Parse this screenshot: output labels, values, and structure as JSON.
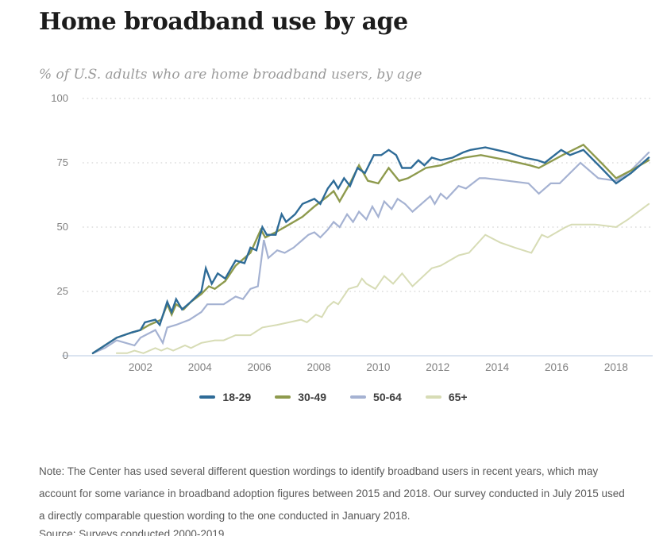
{
  "header": {
    "title": "Home broadband use by age",
    "subtitle": "% of U.S. adults who are home broadband users, by age"
  },
  "chart_data": {
    "type": "line",
    "title": "Home broadband use by age",
    "subtitle": "% of U.S. adults who are home broadband users, by age",
    "xlabel": "",
    "ylabel": "% of U.S. adults",
    "x_axis": {
      "ticks": [
        2002,
        2004,
        2006,
        2008,
        2010,
        2012,
        2014,
        2016,
        2018
      ],
      "range": [
        2000.2,
        2019.3
      ]
    },
    "y_axis": {
      "ticks": [
        0,
        25,
        50,
        75,
        100
      ],
      "range": [
        0,
        100
      ]
    },
    "grid": "horizontal-dotted",
    "grid_color": "#d4d4d4",
    "axis_line_color": "#c5d3e6",
    "legend_position": "bottom-center",
    "series": [
      {
        "name": "18-29",
        "color": "#2e6b97",
        "width": 2.4,
        "points": [
          [
            2000.4,
            1
          ],
          [
            2000.8,
            4
          ],
          [
            2001.2,
            7
          ],
          [
            2001.7,
            9
          ],
          [
            2002.0,
            10
          ],
          [
            2002.15,
            13
          ],
          [
            2002.5,
            14
          ],
          [
            2002.65,
            12
          ],
          [
            2002.9,
            21
          ],
          [
            2003.05,
            17
          ],
          [
            2003.2,
            22
          ],
          [
            2003.4,
            18
          ],
          [
            2003.7,
            21
          ],
          [
            2004.05,
            25
          ],
          [
            2004.2,
            34
          ],
          [
            2004.4,
            28
          ],
          [
            2004.6,
            32
          ],
          [
            2004.85,
            30
          ],
          [
            2005.2,
            37
          ],
          [
            2005.5,
            36
          ],
          [
            2005.7,
            42
          ],
          [
            2005.9,
            41
          ],
          [
            2006.1,
            50
          ],
          [
            2006.25,
            47
          ],
          [
            2006.55,
            47
          ],
          [
            2006.75,
            55
          ],
          [
            2006.9,
            52
          ],
          [
            2007.2,
            55
          ],
          [
            2007.45,
            59
          ],
          [
            2007.85,
            61
          ],
          [
            2008.05,
            59
          ],
          [
            2008.3,
            65
          ],
          [
            2008.5,
            68
          ],
          [
            2008.65,
            65
          ],
          [
            2008.85,
            69
          ],
          [
            2009.05,
            66
          ],
          [
            2009.3,
            73
          ],
          [
            2009.55,
            71
          ],
          [
            2009.85,
            78
          ],
          [
            2010.1,
            78
          ],
          [
            2010.35,
            80
          ],
          [
            2010.6,
            78
          ],
          [
            2010.8,
            73
          ],
          [
            2011.1,
            73
          ],
          [
            2011.35,
            76
          ],
          [
            2011.55,
            74
          ],
          [
            2011.8,
            77
          ],
          [
            2012.1,
            76
          ],
          [
            2012.5,
            77
          ],
          [
            2012.85,
            79
          ],
          [
            2013.1,
            80
          ],
          [
            2013.6,
            81
          ],
          [
            2014.35,
            79
          ],
          [
            2014.9,
            77
          ],
          [
            2015.35,
            76
          ],
          [
            2015.6,
            75
          ],
          [
            2016.15,
            80
          ],
          [
            2016.45,
            78
          ],
          [
            2016.9,
            80
          ],
          [
            2017.5,
            73
          ],
          [
            2018.0,
            67
          ],
          [
            2018.5,
            71
          ],
          [
            2019.1,
            77
          ]
        ]
      },
      {
        "name": "30-49",
        "color": "#8e9a4d",
        "width": 2.4,
        "points": [
          [
            2000.4,
            1
          ],
          [
            2000.8,
            4
          ],
          [
            2001.2,
            7
          ],
          [
            2001.7,
            9
          ],
          [
            2002.0,
            10
          ],
          [
            2002.3,
            12
          ],
          [
            2002.7,
            14
          ],
          [
            2002.9,
            20
          ],
          [
            2003.05,
            16
          ],
          [
            2003.2,
            20
          ],
          [
            2003.45,
            18
          ],
          [
            2003.7,
            21
          ],
          [
            2004.05,
            24
          ],
          [
            2004.3,
            27
          ],
          [
            2004.5,
            26
          ],
          [
            2004.85,
            29
          ],
          [
            2005.2,
            35
          ],
          [
            2005.7,
            40
          ],
          [
            2006.05,
            49
          ],
          [
            2006.2,
            46
          ],
          [
            2006.55,
            48
          ],
          [
            2007.0,
            51
          ],
          [
            2007.45,
            54
          ],
          [
            2007.85,
            58
          ],
          [
            2008.3,
            62
          ],
          [
            2008.5,
            64
          ],
          [
            2008.7,
            60
          ],
          [
            2009.05,
            67
          ],
          [
            2009.35,
            74
          ],
          [
            2009.65,
            68
          ],
          [
            2010.0,
            67
          ],
          [
            2010.35,
            73
          ],
          [
            2010.7,
            68
          ],
          [
            2011.0,
            69
          ],
          [
            2011.3,
            71
          ],
          [
            2011.6,
            73
          ],
          [
            2012.1,
            74
          ],
          [
            2012.55,
            76
          ],
          [
            2012.9,
            77
          ],
          [
            2013.45,
            78
          ],
          [
            2014.35,
            76
          ],
          [
            2015.1,
            74
          ],
          [
            2015.4,
            73
          ],
          [
            2016.2,
            78
          ],
          [
            2016.9,
            82
          ],
          [
            2017.5,
            75
          ],
          [
            2018.0,
            69
          ],
          [
            2018.5,
            72
          ],
          [
            2019.1,
            76
          ]
        ]
      },
      {
        "name": "50-64",
        "color": "#a5b2d2",
        "width": 2.2,
        "points": [
          [
            2000.4,
            1
          ],
          [
            2000.8,
            3
          ],
          [
            2001.2,
            6
          ],
          [
            2001.8,
            4
          ],
          [
            2002.0,
            7
          ],
          [
            2002.5,
            10
          ],
          [
            2002.75,
            5
          ],
          [
            2002.9,
            11
          ],
          [
            2003.2,
            12
          ],
          [
            2003.65,
            14
          ],
          [
            2004.05,
            17
          ],
          [
            2004.25,
            20
          ],
          [
            2004.8,
            20
          ],
          [
            2005.2,
            23
          ],
          [
            2005.45,
            22
          ],
          [
            2005.7,
            26
          ],
          [
            2005.95,
            27
          ],
          [
            2006.15,
            45
          ],
          [
            2006.3,
            38
          ],
          [
            2006.6,
            41
          ],
          [
            2006.85,
            40
          ],
          [
            2007.15,
            42
          ],
          [
            2007.65,
            47
          ],
          [
            2007.85,
            48
          ],
          [
            2008.05,
            46
          ],
          [
            2008.3,
            49
          ],
          [
            2008.5,
            52
          ],
          [
            2008.7,
            50
          ],
          [
            2008.95,
            55
          ],
          [
            2009.15,
            52
          ],
          [
            2009.35,
            56
          ],
          [
            2009.6,
            53
          ],
          [
            2009.8,
            58
          ],
          [
            2010.0,
            54
          ],
          [
            2010.2,
            60
          ],
          [
            2010.45,
            57
          ],
          [
            2010.65,
            61
          ],
          [
            2010.9,
            59
          ],
          [
            2011.15,
            56
          ],
          [
            2011.55,
            60
          ],
          [
            2011.75,
            62
          ],
          [
            2011.9,
            59
          ],
          [
            2012.1,
            63
          ],
          [
            2012.3,
            61
          ],
          [
            2012.7,
            66
          ],
          [
            2012.95,
            65
          ],
          [
            2013.4,
            69
          ],
          [
            2013.6,
            69
          ],
          [
            2014.35,
            68
          ],
          [
            2015.05,
            67
          ],
          [
            2015.4,
            63
          ],
          [
            2015.8,
            67
          ],
          [
            2016.1,
            67
          ],
          [
            2016.8,
            75
          ],
          [
            2017.4,
            69
          ],
          [
            2018.0,
            68
          ],
          [
            2018.5,
            72
          ],
          [
            2019.1,
            79
          ]
        ]
      },
      {
        "name": "65+",
        "color": "#d7dcb5",
        "width": 2.0,
        "points": [
          [
            2001.2,
            1
          ],
          [
            2001.55,
            1
          ],
          [
            2001.8,
            2
          ],
          [
            2002.1,
            1
          ],
          [
            2002.5,
            3
          ],
          [
            2002.7,
            2
          ],
          [
            2002.9,
            3
          ],
          [
            2003.1,
            2
          ],
          [
            2003.5,
            4
          ],
          [
            2003.7,
            3
          ],
          [
            2004.05,
            5
          ],
          [
            2004.5,
            6
          ],
          [
            2004.8,
            6
          ],
          [
            2005.2,
            8
          ],
          [
            2005.7,
            8
          ],
          [
            2006.1,
            11
          ],
          [
            2006.6,
            12
          ],
          [
            2007.0,
            13
          ],
          [
            2007.4,
            14
          ],
          [
            2007.6,
            13
          ],
          [
            2007.9,
            16
          ],
          [
            2008.1,
            15
          ],
          [
            2008.3,
            19
          ],
          [
            2008.5,
            21
          ],
          [
            2008.65,
            20
          ],
          [
            2009.0,
            26
          ],
          [
            2009.3,
            27
          ],
          [
            2009.45,
            30
          ],
          [
            2009.6,
            28
          ],
          [
            2009.9,
            26
          ],
          [
            2010.2,
            31
          ],
          [
            2010.5,
            28
          ],
          [
            2010.8,
            32
          ],
          [
            2011.15,
            27
          ],
          [
            2011.8,
            34
          ],
          [
            2012.1,
            35
          ],
          [
            2012.7,
            39
          ],
          [
            2013.05,
            40
          ],
          [
            2013.6,
            47
          ],
          [
            2014.1,
            44
          ],
          [
            2014.6,
            42
          ],
          [
            2015.15,
            40
          ],
          [
            2015.5,
            47
          ],
          [
            2015.7,
            46
          ],
          [
            2016.3,
            50
          ],
          [
            2016.5,
            51
          ],
          [
            2017.3,
            51
          ],
          [
            2018.0,
            50
          ],
          [
            2018.4,
            53
          ],
          [
            2019.1,
            59
          ]
        ]
      }
    ]
  },
  "footer": {
    "note": "Note: The Center has used several different question wordings to identify broadband users in recent years, which may account for some variance in broadband adoption figures between 2015 and 2018. Our survey conducted in July 2015 used a directly comparable question wording to the one conducted in January 2018.",
    "source": "Source: Surveys conducted 2000-2019."
  }
}
